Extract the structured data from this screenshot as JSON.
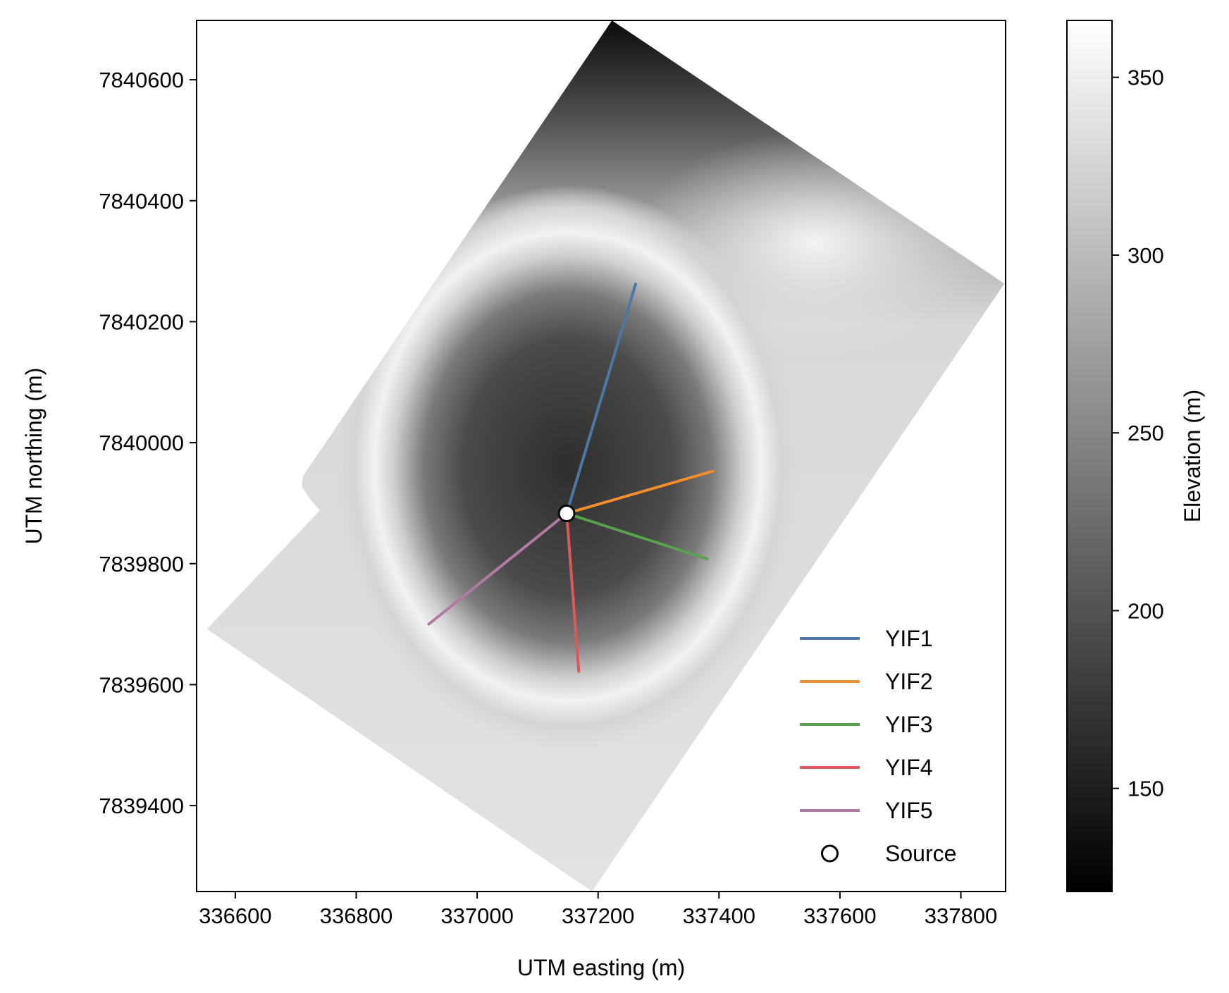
{
  "chart_data": {
    "type": "line",
    "title": "",
    "xlabel": "UTM easting (m)",
    "ylabel": "UTM northing (m)",
    "xlim": [
      336536,
      337874
    ],
    "ylim": [
      7839258,
      7840698
    ],
    "xticks": [
      336600,
      336800,
      337000,
      337200,
      337400,
      337600,
      337800
    ],
    "yticks": [
      7839400,
      7839600,
      7839800,
      7840000,
      7840200,
      7840400,
      7840600
    ],
    "grid": false,
    "legend_position": "lower-right",
    "background": {
      "type": "elevation-grid",
      "colormap": "greys",
      "survey_footprint": [
        [
          337223,
          7840698
        ],
        [
          337872,
          7840263
        ],
        [
          337190,
          7839258
        ],
        [
          336553,
          7839692
        ],
        [
          336740,
          7839888
        ],
        [
          336725,
          7839905
        ],
        [
          336710,
          7839927
        ],
        [
          336712,
          7839945
        ]
      ],
      "crater_center": [
        337150,
        7839960
      ]
    },
    "series": [
      {
        "name": "YIF1",
        "color": "#4c78a8",
        "x": [
          337148,
          337262
        ],
        "y": [
          7839883,
          7840262
        ]
      },
      {
        "name": "YIF2",
        "color": "#f28e2b",
        "x": [
          337148,
          337390
        ],
        "y": [
          7839883,
          7839953
        ]
      },
      {
        "name": "YIF3",
        "color": "#59a14f",
        "x": [
          337148,
          337380
        ],
        "y": [
          7839883,
          7839808
        ]
      },
      {
        "name": "YIF4",
        "color": "#e15759",
        "x": [
          337148,
          337168
        ],
        "y": [
          7839883,
          7839622
        ]
      },
      {
        "name": "YIF5",
        "color": "#b07aa1",
        "x": [
          337148,
          336920
        ],
        "y": [
          7839883,
          7839700
        ]
      }
    ],
    "source": {
      "name": "Source",
      "x": 337148,
      "y": 7839883
    },
    "colorbar": {
      "label": "Elevation (m)",
      "range": [
        121,
        366
      ],
      "ticks": [
        150,
        200,
        250,
        300,
        350
      ]
    }
  }
}
